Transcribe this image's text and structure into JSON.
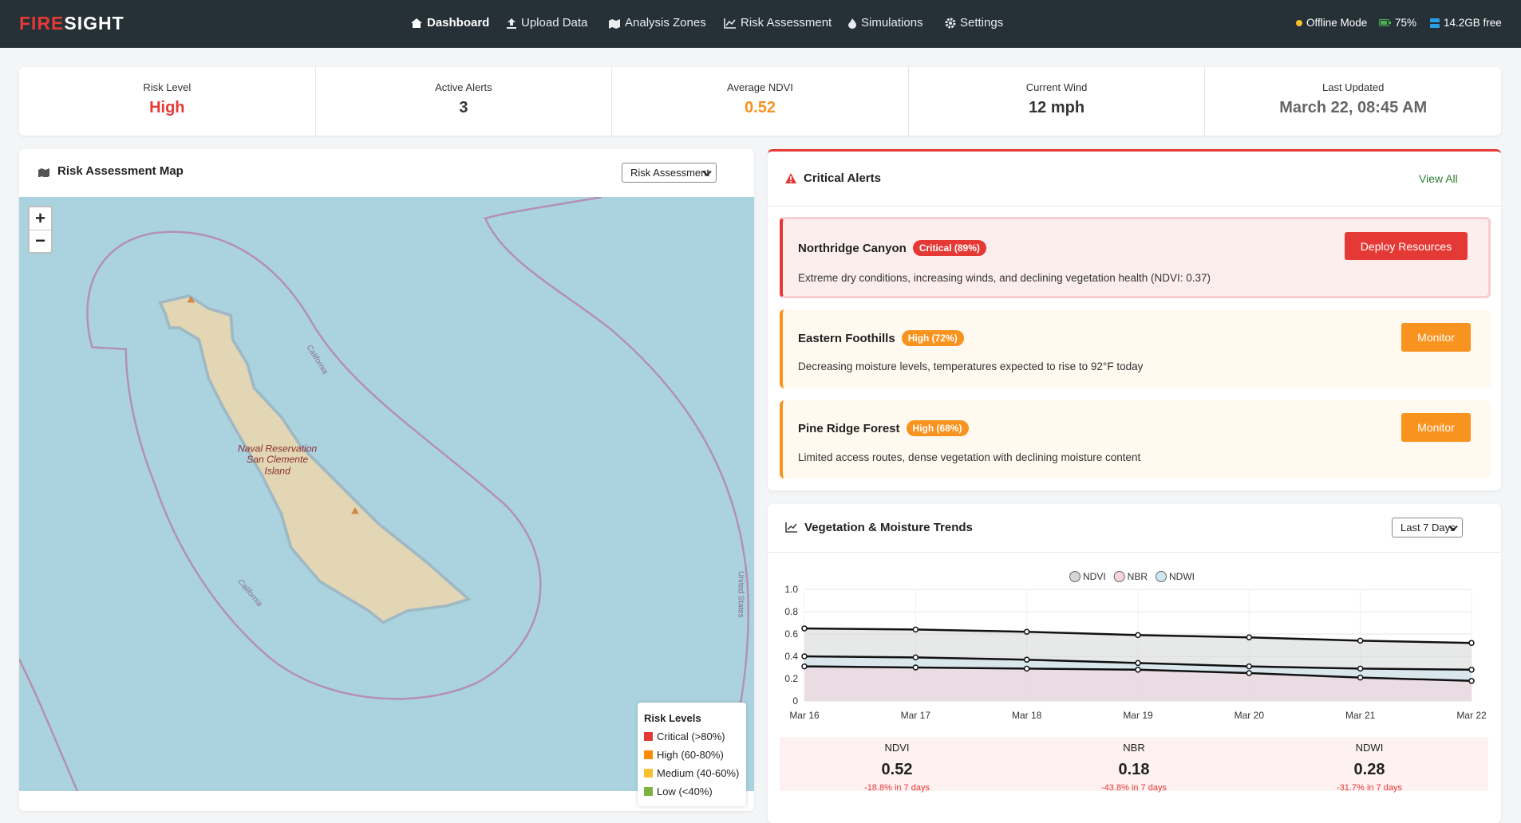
{
  "navbar": {
    "logo_first": "FIRE",
    "logo_second": "SIGHT",
    "links": [
      "Dashboard",
      "Upload Data",
      "Analysis Zones",
      "Risk Assessment",
      "Simulations",
      "Settings"
    ],
    "status": [
      "Offline Mode",
      "75%",
      "14.2GB free"
    ]
  },
  "stats": [
    {
      "label": "Risk Level",
      "value": "High"
    },
    {
      "label": "Active Alerts",
      "value": "3"
    },
    {
      "label": "Average NDVI",
      "value": "0.52"
    },
    {
      "label": "Current Wind",
      "value": "12 mph"
    },
    {
      "label": "Last Updated",
      "value": "March 22, 08:45 AM"
    }
  ],
  "map_panel": {
    "title": "Risk Assessment Map",
    "select": "Risk Assessment",
    "zoom": [
      "+",
      "−"
    ],
    "labels": [
      "California",
      "California",
      "Naval Reservation",
      "San Clemente",
      "Island",
      "United States"
    ],
    "legend": {
      "title": "Risk Levels",
      "items": [
        "Critical (>80%)",
        "High (60-80%)",
        "Medium (40-60%)",
        "Low (<40%)"
      ]
    }
  },
  "alerts_panel": {
    "title": "Critical Alerts",
    "view_all": "View All",
    "alerts": [
      {
        "name": "Northridge Canyon",
        "badge": "Critical (89%)",
        "description": "Extreme dry conditions, increasing winds, and declining vegetation health (NDVI: 0.37)",
        "action": "Deploy Resources"
      },
      {
        "name": "Eastern Foothills",
        "badge": "High (72%)",
        "description": "Decreasing moisture levels, temperatures expected to rise to 92°F today",
        "action": "Monitor"
      },
      {
        "name": "Pine Ridge Forest",
        "badge": "High (68%)",
        "description": "Limited access routes, dense vegetation with declining moisture content",
        "action": "Monitor"
      }
    ]
  },
  "trends_panel": {
    "title": "Vegetation & Moisture Trends",
    "select": "Last 7 Days",
    "chart": {
      "type": "line",
      "categories": [
        "Mar 16",
        "Mar 17",
        "Mar 18",
        "Mar 19",
        "Mar 20",
        "Mar 21",
        "Mar 22"
      ],
      "series": [
        {
          "name": "NDVI",
          "color": "#d3d6d6",
          "values": [
            0.65,
            0.64,
            0.62,
            0.59,
            0.57,
            0.54,
            0.52
          ]
        },
        {
          "name": "NBR",
          "color": "#f6d4d8",
          "values": [
            0.31,
            0.3,
            0.29,
            0.28,
            0.25,
            0.21,
            0.18
          ]
        },
        {
          "name": "NDWI",
          "color": "#cde6f0",
          "values": [
            0.4,
            0.39,
            0.37,
            0.34,
            0.31,
            0.29,
            0.28
          ]
        }
      ],
      "line_color": "#111111",
      "ylim": [
        0,
        1
      ],
      "yticks": [
        0,
        0.2,
        0.4,
        0.6,
        0.8,
        {
          "value": 1,
          "label": "1.0"
        }
      ],
      "grid": true,
      "legend": "top"
    },
    "summary": [
      {
        "label": "NDVI",
        "value": "0.52",
        "change": "-18.8% in 7 days"
      },
      {
        "label": "NBR",
        "value": "0.18",
        "change": "-43.8% in 7 days"
      },
      {
        "label": "NDWI",
        "value": "0.28",
        "change": "-31.7% in 7 days"
      }
    ]
  }
}
